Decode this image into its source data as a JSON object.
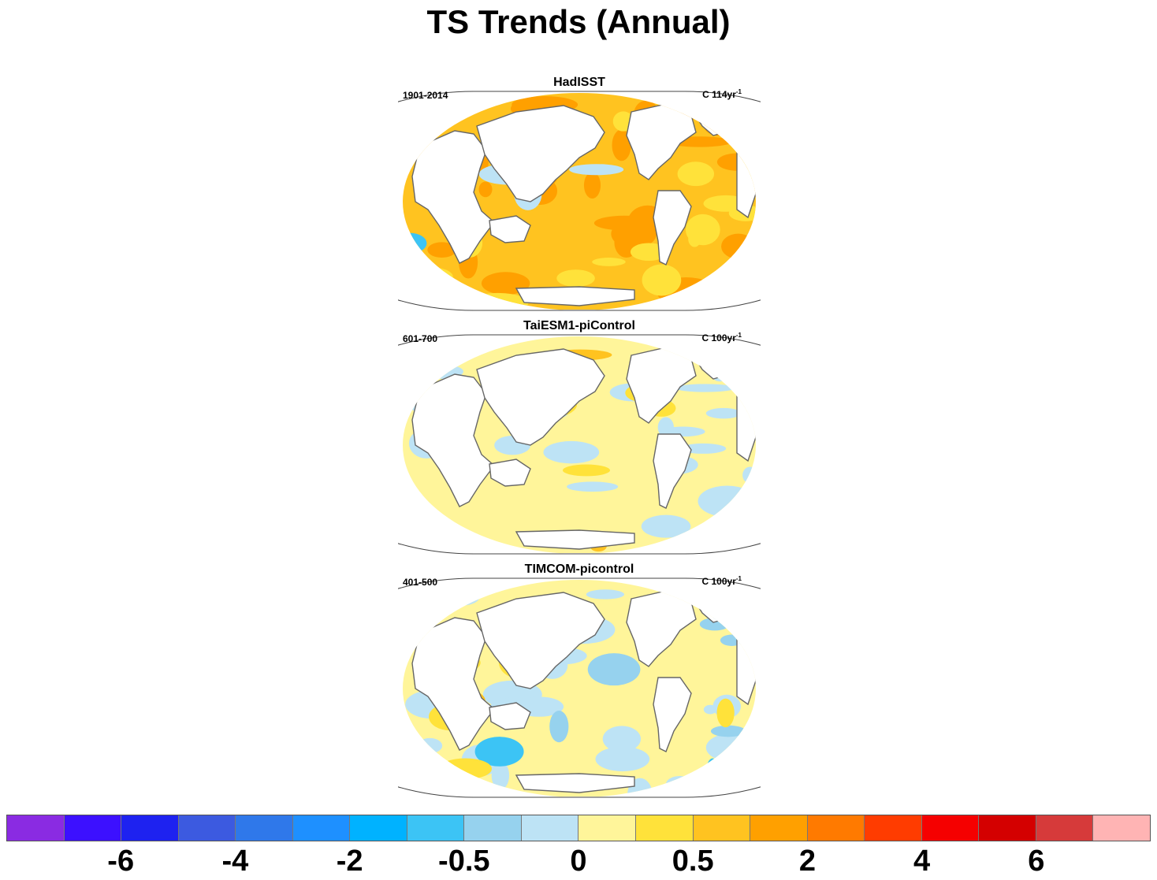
{
  "title": "TS Trends (Annual)",
  "panels": [
    {
      "title": "HadISST",
      "period": "1901-2014",
      "units": "C 114yr",
      "units_exp": "-1",
      "pattern": "warm"
    },
    {
      "title": "TaiESM1-piControl",
      "period": "601-700",
      "units": "C 100yr",
      "units_exp": "-1",
      "pattern": "neutral"
    },
    {
      "title": "TIMCOM-picontrol",
      "period": "401-500",
      "units": "C 100yr",
      "units_exp": "-1",
      "pattern": "mixed"
    }
  ],
  "colorbar": {
    "colors": [
      "#8a2be2",
      "#3c10ff",
      "#1e22f0",
      "#3c5ae0",
      "#2f78ea",
      "#1e90ff",
      "#00b2ff",
      "#3cc4f5",
      "#96d2ee",
      "#bde3f5",
      "#fff59a",
      "#ffe23a",
      "#ffc320",
      "#ffa000",
      "#ff7a00",
      "#ff3c00",
      "#f50000",
      "#d40000",
      "#d63a3a",
      "#ffb4b4"
    ],
    "labels": [
      {
        "text": "-6",
        "boundary": 2
      },
      {
        "text": "-4",
        "boundary": 4
      },
      {
        "text": "-2",
        "boundary": 6
      },
      {
        "text": "-0.5",
        "boundary": 8
      },
      {
        "text": "0",
        "boundary": 10
      },
      {
        "text": "0.5",
        "boundary": 12
      },
      {
        "text": "2",
        "boundary": 14
      },
      {
        "text": "4",
        "boundary": 16
      },
      {
        "text": "6",
        "boundary": 18
      }
    ]
  }
}
